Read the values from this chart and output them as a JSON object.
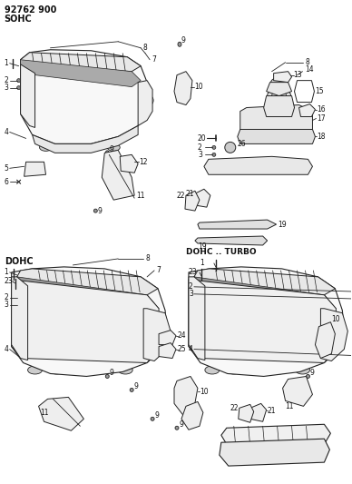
{
  "title_line1": "92762 900",
  "title_line2": "SOHC",
  "label_dohc": "DOHC",
  "label_dohc_turbo": "DOHC .. TURBO",
  "bg_color": "#ffffff",
  "text_color": "#111111",
  "line_color": "#222222",
  "fig_width": 3.88,
  "fig_height": 5.33,
  "dpi": 100
}
